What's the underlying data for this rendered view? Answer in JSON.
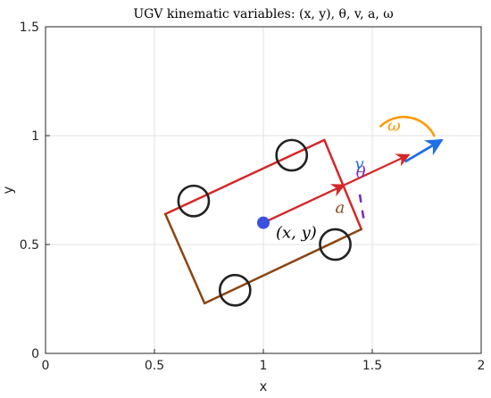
{
  "title": "UGV kinematic variables: (x, y), θ, v, a, ω",
  "chart_data": {
    "type": "diagram",
    "title": "UGV kinematic variables: (x, y), θ, v, a, ω",
    "xlabel": "x",
    "ylabel": "y",
    "xlim": [
      0,
      2
    ],
    "ylim": [
      0,
      1.5
    ],
    "xticks": [
      0,
      0.5,
      1,
      1.5,
      2
    ],
    "xtick_labels": [
      "0",
      "0.5",
      "1",
      "1.5",
      "2"
    ],
    "yticks": [
      0,
      0.5,
      1,
      1.5
    ],
    "ytick_labels": [
      "0",
      "0.5",
      "1",
      "1.5"
    ],
    "grid": true,
    "center": [
      1.0,
      0.6
    ],
    "heading_deg": 25,
    "body_corners": [
      [
        1.45,
        0.57
      ],
      [
        1.28,
        0.98
      ],
      [
        0.55,
        0.64
      ],
      [
        0.73,
        0.23
      ]
    ],
    "wheels": [
      [
        1.13,
        0.91
      ],
      [
        0.68,
        0.7
      ],
      [
        0.87,
        0.29
      ],
      [
        1.33,
        0.5
      ]
    ],
    "wheel_radius": 0.07,
    "center_label": "(x, y)",
    "theta_label": "θ",
    "v_label": "v",
    "a_label": "a",
    "omega_label": "ω",
    "colors": {
      "center": "#3a50e0",
      "front_edges": "#d62728",
      "rear_edges": "#8b4513",
      "wheels": "#222222",
      "velocity": "#d62728",
      "acceleration": "#8b4513",
      "theta": "#7b2fbe",
      "omega_arc": "#ff9900",
      "omega_arrow": "#1f6fe5",
      "v_label": "#1f6fe5",
      "a_label": "#8b4513",
      "theta_label": "#7b2fbe",
      "omega_label": "#ff9900"
    }
  }
}
